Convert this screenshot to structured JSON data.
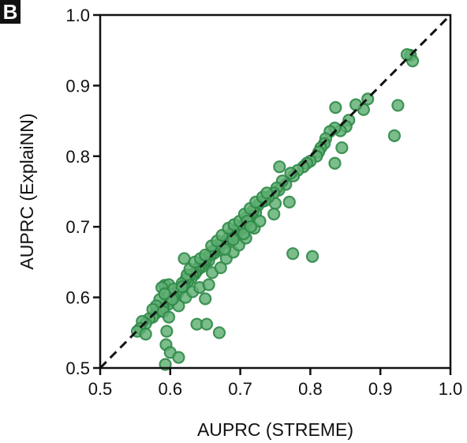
{
  "panel_label": "B",
  "chart_data": {
    "type": "scatter",
    "xlabel": "AUPRC (STREME)",
    "ylabel": "AUPRC (ExplaiNN)",
    "xlim": [
      0.5,
      1.0
    ],
    "ylim": [
      0.5,
      1.0
    ],
    "x_ticks": [
      "0.5",
      "0.6",
      "0.7",
      "0.8",
      "0.9",
      "1.0"
    ],
    "y_ticks": [
      "0.5",
      "0.6",
      "0.7",
      "0.8",
      "0.9",
      "1.0"
    ],
    "grid": false,
    "diagonal_reference": true,
    "colors": {
      "point_fill": "#5fae73",
      "point_edge": "#2f8a48",
      "diagonal": "#111111"
    },
    "points": [
      [
        0.943,
        0.943
      ],
      [
        0.946,
        0.935
      ],
      [
        0.938,
        0.944
      ],
      [
        0.882,
        0.881
      ],
      [
        0.876,
        0.866
      ],
      [
        0.865,
        0.873
      ],
      [
        0.836,
        0.869
      ],
      [
        0.925,
        0.872
      ],
      [
        0.92,
        0.829
      ],
      [
        0.855,
        0.851
      ],
      [
        0.851,
        0.842
      ],
      [
        0.843,
        0.836
      ],
      [
        0.835,
        0.84
      ],
      [
        0.828,
        0.835
      ],
      [
        0.822,
        0.825
      ],
      [
        0.82,
        0.818
      ],
      [
        0.815,
        0.812
      ],
      [
        0.812,
        0.806
      ],
      [
        0.809,
        0.8
      ],
      [
        0.845,
        0.812
      ],
      [
        0.835,
        0.79
      ],
      [
        0.8,
        0.793
      ],
      [
        0.795,
        0.79
      ],
      [
        0.79,
        0.785
      ],
      [
        0.782,
        0.78
      ],
      [
        0.776,
        0.772
      ],
      [
        0.772,
        0.776
      ],
      [
        0.765,
        0.76
      ],
      [
        0.76,
        0.765
      ],
      [
        0.755,
        0.752
      ],
      [
        0.752,
        0.755
      ],
      [
        0.748,
        0.748
      ],
      [
        0.756,
        0.785
      ],
      [
        0.75,
        0.733
      ],
      [
        0.74,
        0.742
      ],
      [
        0.735,
        0.737
      ],
      [
        0.73,
        0.735
      ],
      [
        0.725,
        0.73
      ],
      [
        0.722,
        0.72
      ],
      [
        0.718,
        0.722
      ],
      [
        0.715,
        0.715
      ],
      [
        0.712,
        0.711
      ],
      [
        0.71,
        0.708
      ],
      [
        0.708,
        0.713
      ],
      [
        0.705,
        0.703
      ],
      [
        0.704,
        0.698
      ],
      [
        0.7,
        0.7
      ],
      [
        0.695,
        0.697
      ],
      [
        0.692,
        0.69
      ],
      [
        0.69,
        0.694
      ],
      [
        0.688,
        0.686
      ],
      [
        0.685,
        0.688
      ],
      [
        0.682,
        0.683
      ],
      [
        0.68,
        0.678
      ],
      [
        0.675,
        0.678
      ],
      [
        0.672,
        0.672
      ],
      [
        0.67,
        0.675
      ],
      [
        0.668,
        0.666
      ],
      [
        0.665,
        0.668
      ],
      [
        0.662,
        0.662
      ],
      [
        0.66,
        0.665
      ],
      [
        0.657,
        0.659
      ],
      [
        0.655,
        0.652
      ],
      [
        0.652,
        0.656
      ],
      [
        0.65,
        0.65
      ],
      [
        0.647,
        0.647
      ],
      [
        0.645,
        0.643
      ],
      [
        0.642,
        0.645
      ],
      [
        0.64,
        0.64
      ],
      [
        0.637,
        0.636
      ],
      [
        0.635,
        0.633
      ],
      [
        0.632,
        0.632
      ],
      [
        0.63,
        0.627
      ],
      [
        0.627,
        0.63
      ],
      [
        0.625,
        0.622
      ],
      [
        0.622,
        0.625
      ],
      [
        0.62,
        0.617
      ],
      [
        0.617,
        0.62
      ],
      [
        0.615,
        0.612
      ],
      [
        0.612,
        0.608
      ],
      [
        0.61,
        0.605
      ],
      [
        0.605,
        0.6
      ],
      [
        0.6,
        0.595
      ],
      [
        0.597,
        0.59
      ],
      [
        0.595,
        0.598
      ],
      [
        0.59,
        0.585
      ],
      [
        0.585,
        0.583
      ],
      [
        0.58,
        0.578
      ],
      [
        0.575,
        0.572
      ],
      [
        0.57,
        0.57
      ],
      [
        0.565,
        0.563
      ],
      [
        0.56,
        0.566
      ],
      [
        0.557,
        0.556
      ],
      [
        0.553,
        0.552
      ],
      [
        0.592,
        0.617
      ],
      [
        0.598,
        0.618
      ],
      [
        0.605,
        0.612
      ],
      [
        0.617,
        0.615
      ],
      [
        0.624,
        0.632
      ],
      [
        0.628,
        0.64
      ],
      [
        0.635,
        0.65
      ],
      [
        0.643,
        0.655
      ],
      [
        0.65,
        0.66
      ],
      [
        0.659,
        0.673
      ],
      [
        0.667,
        0.68
      ],
      [
        0.674,
        0.688
      ],
      [
        0.683,
        0.698
      ],
      [
        0.691,
        0.703
      ],
      [
        0.699,
        0.708
      ],
      [
        0.706,
        0.718
      ],
      [
        0.714,
        0.726
      ],
      [
        0.722,
        0.735
      ],
      [
        0.732,
        0.742
      ],
      [
        0.738,
        0.748
      ],
      [
        0.612,
        0.588
      ],
      [
        0.622,
        0.6
      ],
      [
        0.632,
        0.608
      ],
      [
        0.642,
        0.614
      ],
      [
        0.655,
        0.618
      ],
      [
        0.66,
        0.635
      ],
      [
        0.672,
        0.642
      ],
      [
        0.68,
        0.655
      ],
      [
        0.69,
        0.664
      ],
      [
        0.698,
        0.674
      ],
      [
        0.708,
        0.684
      ],
      [
        0.72,
        0.698
      ],
      [
        0.728,
        0.708
      ],
      [
        0.62,
        0.655
      ],
      [
        0.603,
        0.597
      ],
      [
        0.588,
        0.614
      ],
      [
        0.585,
        0.597
      ],
      [
        0.58,
        0.588
      ],
      [
        0.575,
        0.583
      ],
      [
        0.592,
        0.605
      ],
      [
        0.565,
        0.548
      ],
      [
        0.59,
        0.58
      ],
      [
        0.598,
        0.572
      ],
      [
        0.595,
        0.552
      ],
      [
        0.594,
        0.533
      ],
      [
        0.6,
        0.522
      ],
      [
        0.612,
        0.515
      ],
      [
        0.593,
        0.505
      ],
      [
        0.638,
        0.562
      ],
      [
        0.652,
        0.562
      ],
      [
        0.67,
        0.55
      ],
      [
        0.65,
        0.598
      ],
      [
        0.775,
        0.662
      ],
      [
        0.803,
        0.658
      ],
      [
        0.77,
        0.735
      ],
      [
        0.748,
        0.718
      ],
      [
        0.71,
        0.708
      ],
      [
        0.705,
        0.69
      ],
      [
        0.715,
        0.7
      ],
      [
        0.69,
        0.682
      ],
      [
        0.678,
        0.668
      ]
    ]
  }
}
